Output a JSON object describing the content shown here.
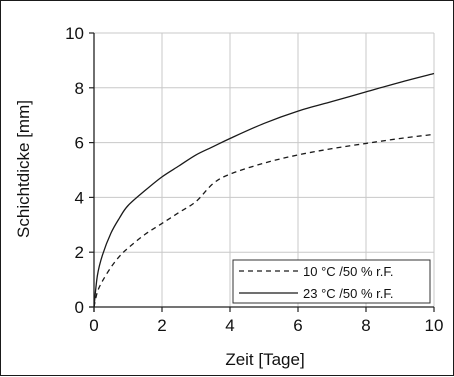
{
  "chart_data": {
    "type": "line",
    "xlabel": "Zeit [Tage]",
    "ylabel": "Schichtdicke [mm]",
    "xlim": [
      0,
      10
    ],
    "ylim": [
      0,
      10
    ],
    "xticks": [
      "0",
      "2",
      "4",
      "6",
      "8",
      "10"
    ],
    "yticks": [
      "0",
      "2",
      "4",
      "6",
      "8",
      "10"
    ],
    "grid": true,
    "legend_position": "bottom-right",
    "series": [
      {
        "name": "10 °C /50 % r.F.",
        "style": "dashed",
        "color": "#1a1a1a",
        "x": [
          0,
          0.1,
          0.25,
          0.5,
          0.75,
          1,
          1.5,
          2,
          2.5,
          3,
          3.5,
          4,
          5,
          6,
          7,
          8,
          9,
          10
        ],
        "y": [
          0,
          0.55,
          0.95,
          1.45,
          1.85,
          2.15,
          2.65,
          3.05,
          3.45,
          3.85,
          4.5,
          4.85,
          5.25,
          5.55,
          5.78,
          5.97,
          6.15,
          6.3
        ]
      },
      {
        "name": "23 °C /50 % r.F.",
        "style": "solid",
        "color": "#1a1a1a",
        "x": [
          0,
          0.1,
          0.25,
          0.5,
          0.75,
          1,
          1.5,
          2,
          2.5,
          3,
          3.5,
          4,
          5,
          6,
          7,
          8,
          9,
          10
        ],
        "y": [
          0,
          1.15,
          1.9,
          2.7,
          3.25,
          3.7,
          4.25,
          4.75,
          5.15,
          5.55,
          5.85,
          6.15,
          6.7,
          7.15,
          7.5,
          7.85,
          8.2,
          8.52
        ]
      }
    ]
  }
}
